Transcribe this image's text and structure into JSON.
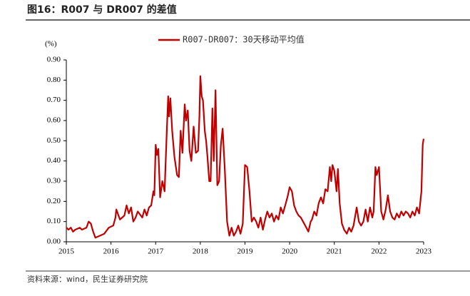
{
  "chart_data": {
    "type": "line",
    "title": "图16：R007 与 DR007 的差值",
    "y_label": "(%)",
    "source": "资料来源：wind，民生证券研究院",
    "xlim": [
      2015,
      2023
    ],
    "xticks": [
      2015,
      2016,
      2017,
      2018,
      2019,
      2020,
      2021,
      2022,
      2023
    ],
    "ylim": [
      0,
      0.9
    ],
    "yticks": [
      {
        "value": 0,
        "label": "0.00"
      },
      {
        "value": 0.1,
        "label": "0.10"
      },
      {
        "value": 0.2,
        "label": "0.20"
      },
      {
        "value": 0.3,
        "label": "0.30"
      },
      {
        "value": 0.4,
        "label": "0.40"
      },
      {
        "value": 0.5,
        "label": "0.50"
      },
      {
        "value": 0.6,
        "label": "0.60"
      },
      {
        "value": 0.7,
        "label": "0.70"
      },
      {
        "value": 0.8,
        "label": "0.80"
      },
      {
        "value": 0.9,
        "label": "0.90"
      }
    ],
    "x": [
      2015.0,
      2015.05,
      2015.1,
      2015.15,
      2015.2,
      2015.3,
      2015.35,
      2015.45,
      2015.5,
      2015.55,
      2015.6,
      2015.65,
      2015.75,
      2015.85,
      2015.95,
      2016.05,
      2016.1,
      2016.12,
      2016.2,
      2016.25,
      2016.3,
      2016.35,
      2016.4,
      2016.45,
      2016.5,
      2016.55,
      2016.6,
      2016.7,
      2016.75,
      2016.8,
      2016.85,
      2016.9,
      2016.95,
      2016.97,
      2017.0,
      2017.03,
      2017.06,
      2017.1,
      2017.15,
      2017.2,
      2017.25,
      2017.28,
      2017.3,
      2017.33,
      2017.37,
      2017.42,
      2017.48,
      2017.52,
      2017.56,
      2017.6,
      2017.65,
      2017.68,
      2017.72,
      2017.76,
      2017.8,
      2017.85,
      2017.9,
      2017.95,
      2017.98,
      2018.0,
      2018.03,
      2018.06,
      2018.1,
      2018.13,
      2018.16,
      2018.2,
      2018.23,
      2018.27,
      2018.3,
      2018.34,
      2018.38,
      2018.42,
      2018.46,
      2018.5,
      2018.55,
      2018.6,
      2018.65,
      2018.7,
      2018.75,
      2018.8,
      2018.85,
      2018.9,
      2018.95,
      2019.0,
      2019.05,
      2019.1,
      2019.15,
      2019.2,
      2019.25,
      2019.3,
      2019.35,
      2019.4,
      2019.45,
      2019.5,
      2019.55,
      2019.6,
      2019.65,
      2019.7,
      2019.75,
      2019.8,
      2019.85,
      2019.9,
      2019.95,
      2020.0,
      2020.05,
      2020.1,
      2020.15,
      2020.2,
      2020.25,
      2020.3,
      2020.35,
      2020.42,
      2020.47,
      2020.5,
      2020.55,
      2020.6,
      2020.65,
      2020.7,
      2020.75,
      2020.8,
      2020.85,
      2020.9,
      2020.93,
      2020.96,
      2021.0,
      2021.05,
      2021.08,
      2021.12,
      2021.17,
      2021.22,
      2021.28,
      2021.33,
      2021.38,
      2021.43,
      2021.5,
      2021.55,
      2021.6,
      2021.65,
      2021.7,
      2021.75,
      2021.8,
      2021.85,
      2021.88,
      2021.92,
      2021.95,
      2022.0,
      2022.05,
      2022.1,
      2022.15,
      2022.2,
      2022.25,
      2022.3,
      2022.35,
      2022.4,
      2022.45,
      2022.5,
      2022.55,
      2022.6,
      2022.65,
      2022.7,
      2022.75,
      2022.8,
      2022.85,
      2022.9,
      2022.95,
      2022.98,
      2023.0
    ],
    "series": [
      {
        "name": "R007-DR007：30天移动平均值",
        "color": "#c00000",
        "values": [
          0.07,
          0.06,
          0.07,
          0.05,
          0.06,
          0.07,
          0.06,
          0.07,
          0.1,
          0.09,
          0.05,
          0.02,
          0.03,
          0.04,
          0.07,
          0.08,
          0.12,
          0.16,
          0.11,
          0.12,
          0.13,
          0.18,
          0.14,
          0.17,
          0.1,
          0.12,
          0.15,
          0.12,
          0.16,
          0.13,
          0.17,
          0.18,
          0.25,
          0.23,
          0.48,
          0.43,
          0.46,
          0.22,
          0.3,
          0.25,
          0.55,
          0.72,
          0.62,
          0.71,
          0.55,
          0.42,
          0.33,
          0.32,
          0.55,
          0.44,
          0.68,
          0.6,
          0.65,
          0.45,
          0.4,
          0.57,
          0.44,
          0.45,
          0.62,
          0.82,
          0.72,
          0.7,
          0.55,
          0.5,
          0.42,
          0.3,
          0.3,
          0.66,
          0.4,
          0.75,
          0.28,
          0.3,
          0.48,
          0.56,
          0.35,
          0.1,
          0.03,
          0.07,
          0.03,
          0.05,
          0.08,
          0.04,
          0.09,
          0.38,
          0.37,
          0.25,
          0.1,
          0.12,
          0.1,
          0.07,
          0.12,
          0.06,
          0.11,
          0.15,
          0.12,
          0.14,
          0.1,
          0.13,
          0.11,
          0.17,
          0.14,
          0.18,
          0.22,
          0.27,
          0.25,
          0.18,
          0.15,
          0.13,
          0.12,
          0.1,
          0.08,
          0.05,
          0.1,
          0.11,
          0.15,
          0.13,
          0.19,
          0.22,
          0.19,
          0.26,
          0.25,
          0.37,
          0.3,
          0.38,
          0.35,
          0.25,
          0.36,
          0.19,
          0.09,
          0.06,
          0.04,
          0.07,
          0.05,
          0.08,
          0.17,
          0.1,
          0.08,
          0.1,
          0.16,
          0.1,
          0.17,
          0.12,
          0.15,
          0.37,
          0.33,
          0.37,
          0.15,
          0.11,
          0.16,
          0.23,
          0.15,
          0.12,
          0.11,
          0.14,
          0.12,
          0.15,
          0.13,
          0.15,
          0.14,
          0.12,
          0.15,
          0.13,
          0.17,
          0.14,
          0.25,
          0.48,
          0.51
        ]
      }
    ]
  }
}
